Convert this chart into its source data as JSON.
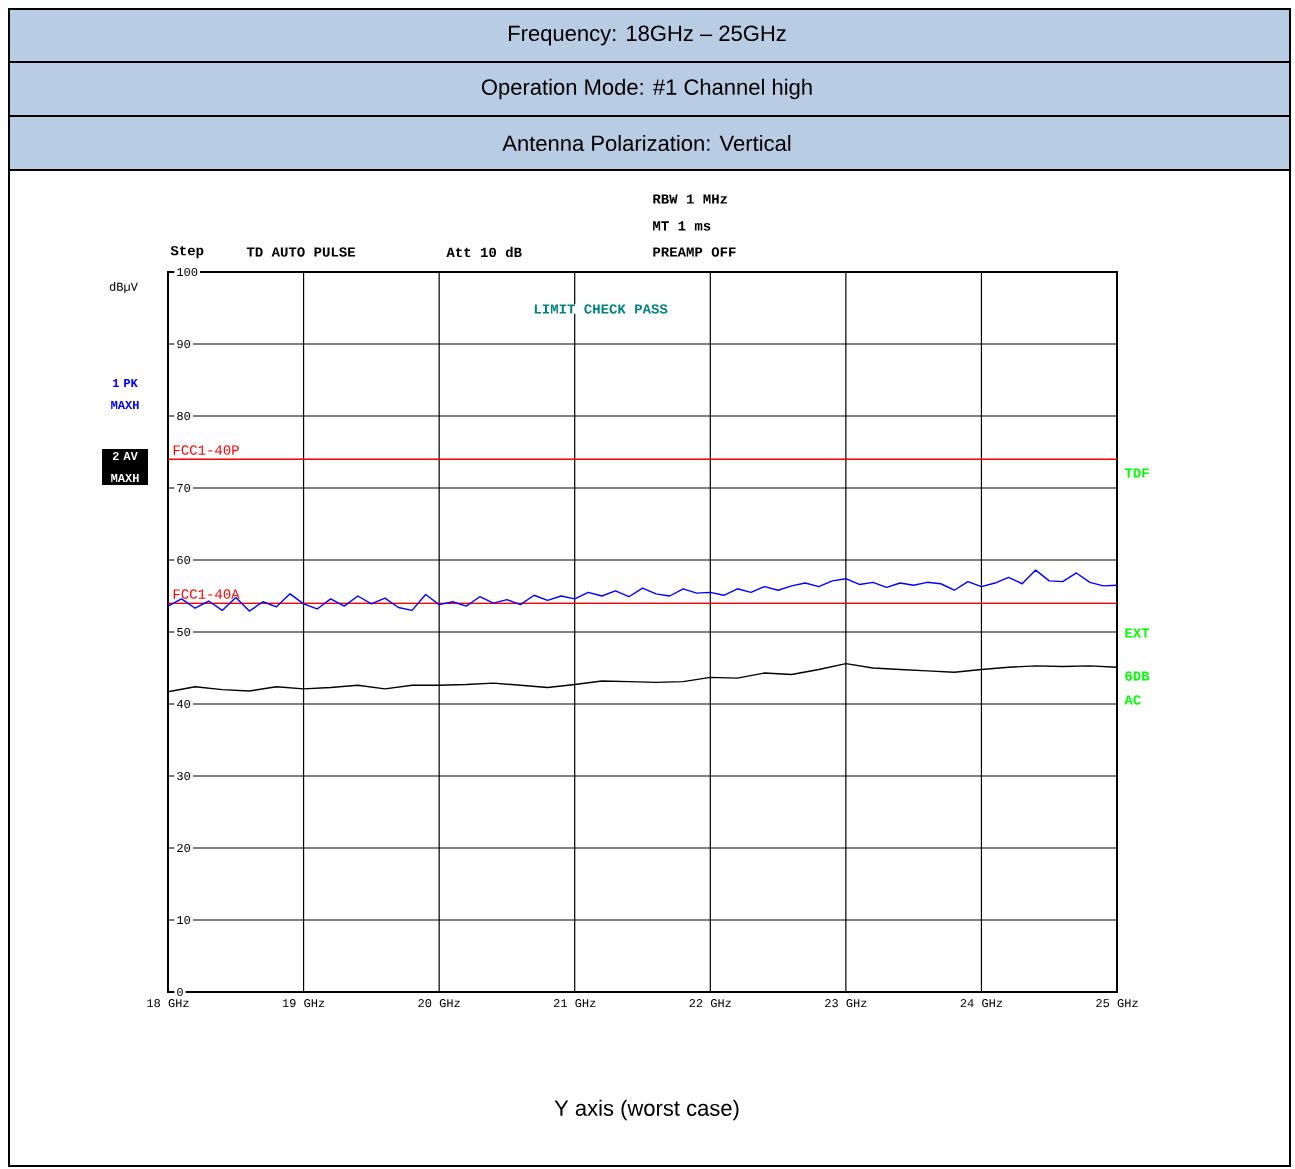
{
  "chart_data": {
    "type": "line",
    "title": "Frequency: 18GHz – 25GHz",
    "subtitle": "Operation Mode: #1 Channel high",
    "ylabel": "dBµV",
    "annotations": [
      "Antenna Polarization: Vertical",
      "Step",
      "TD AUTO PULSE",
      "Att 10 dB",
      "RBW 1 MHz",
      "MT 1 ms",
      "PREAMP OFF",
      "LIMIT CHECK PASS",
      "TDF",
      "EXT",
      "6DB",
      "AC",
      "Y axis (worst case)"
    ],
    "xlim": [
      18,
      25
    ],
    "ylim": [
      0,
      100
    ],
    "xticks": [
      {
        "value": 18,
        "label": "18 GHz"
      },
      {
        "value": 19,
        "label": "19 GHz"
      },
      {
        "value": 20,
        "label": "20 GHz"
      },
      {
        "value": 21,
        "label": "21 GHz"
      },
      {
        "value": 22,
        "label": "22 GHz"
      },
      {
        "value": 23,
        "label": "23 GHz"
      },
      {
        "value": 24,
        "label": "24 GHz"
      },
      {
        "value": 25,
        "label": "25 GHz"
      }
    ],
    "yticks": [
      0,
      10,
      20,
      30,
      40,
      50,
      60,
      70,
      80,
      90,
      100
    ],
    "grid": true,
    "legend": "left",
    "ref_lines": [
      {
        "axis": "y",
        "value": 74,
        "label": "FCC1-40P",
        "color": "#ff0000"
      },
      {
        "axis": "y",
        "value": 54,
        "label": "FCC1-40A",
        "color": "#ff0000"
      }
    ],
    "series": [
      {
        "name": "1 PK MAXH",
        "color": "#0000ff",
        "x": [
          18.0,
          18.1,
          18.2,
          18.3,
          18.4,
          18.5,
          18.6,
          18.7,
          18.8,
          18.9,
          19.0,
          19.1,
          19.2,
          19.3,
          19.4,
          19.5,
          19.6,
          19.7,
          19.8,
          19.9,
          20.0,
          20.1,
          20.2,
          20.3,
          20.4,
          20.5,
          20.6,
          20.7,
          20.8,
          20.9,
          21.0,
          21.1,
          21.2,
          21.3,
          21.4,
          21.5,
          21.6,
          21.7,
          21.8,
          21.9,
          22.0,
          22.1,
          22.2,
          22.3,
          22.4,
          22.5,
          22.6,
          22.7,
          22.8,
          22.9,
          23.0,
          23.1,
          23.2,
          23.3,
          23.4,
          23.5,
          23.6,
          23.7,
          23.8,
          23.9,
          24.0,
          24.1,
          24.2,
          24.3,
          24.4,
          24.5,
          24.6,
          24.7,
          24.8,
          24.9,
          25.0
        ],
        "values": [
          53.6,
          54.6,
          53.3,
          54.3,
          53.0,
          54.8,
          52.9,
          54.2,
          53.5,
          55.3,
          53.9,
          53.2,
          54.6,
          53.6,
          55.0,
          53.9,
          54.7,
          53.4,
          53.0,
          55.2,
          53.8,
          54.2,
          53.6,
          54.9,
          54.0,
          54.5,
          53.8,
          55.1,
          54.4,
          55.0,
          54.6,
          55.5,
          55.0,
          55.7,
          54.9,
          56.1,
          55.3,
          55.0,
          56.0,
          55.4,
          55.5,
          55.1,
          56.0,
          55.5,
          56.3,
          55.8,
          56.4,
          56.8,
          56.3,
          57.1,
          57.4,
          56.6,
          56.9,
          56.2,
          56.8,
          56.5,
          56.9,
          56.7,
          55.8,
          57.0,
          56.3,
          56.8,
          57.6,
          56.7,
          58.6,
          57.1,
          57.0,
          58.2,
          56.9,
          56.4,
          56.5
        ]
      },
      {
        "name": "2 AV MAXH",
        "color": "#000000",
        "x": [
          18.0,
          18.2,
          18.4,
          18.6,
          18.8,
          19.0,
          19.2,
          19.4,
          19.6,
          19.8,
          20.0,
          20.2,
          20.4,
          20.6,
          20.8,
          21.0,
          21.2,
          21.4,
          21.6,
          21.8,
          22.0,
          22.2,
          22.4,
          22.6,
          22.8,
          23.0,
          23.2,
          23.4,
          23.6,
          23.8,
          24.0,
          24.2,
          24.4,
          24.6,
          24.8,
          25.0
        ],
        "values": [
          41.7,
          42.4,
          42.0,
          41.8,
          42.4,
          42.1,
          42.3,
          42.6,
          42.1,
          42.6,
          42.6,
          42.7,
          42.9,
          42.6,
          42.3,
          42.7,
          43.2,
          43.1,
          43.0,
          43.1,
          43.7,
          43.6,
          44.3,
          44.1,
          44.8,
          45.6,
          45.0,
          44.8,
          44.6,
          44.4,
          44.8,
          45.1,
          45.3,
          45.2,
          45.3,
          45.1
        ]
      }
    ]
  }
}
